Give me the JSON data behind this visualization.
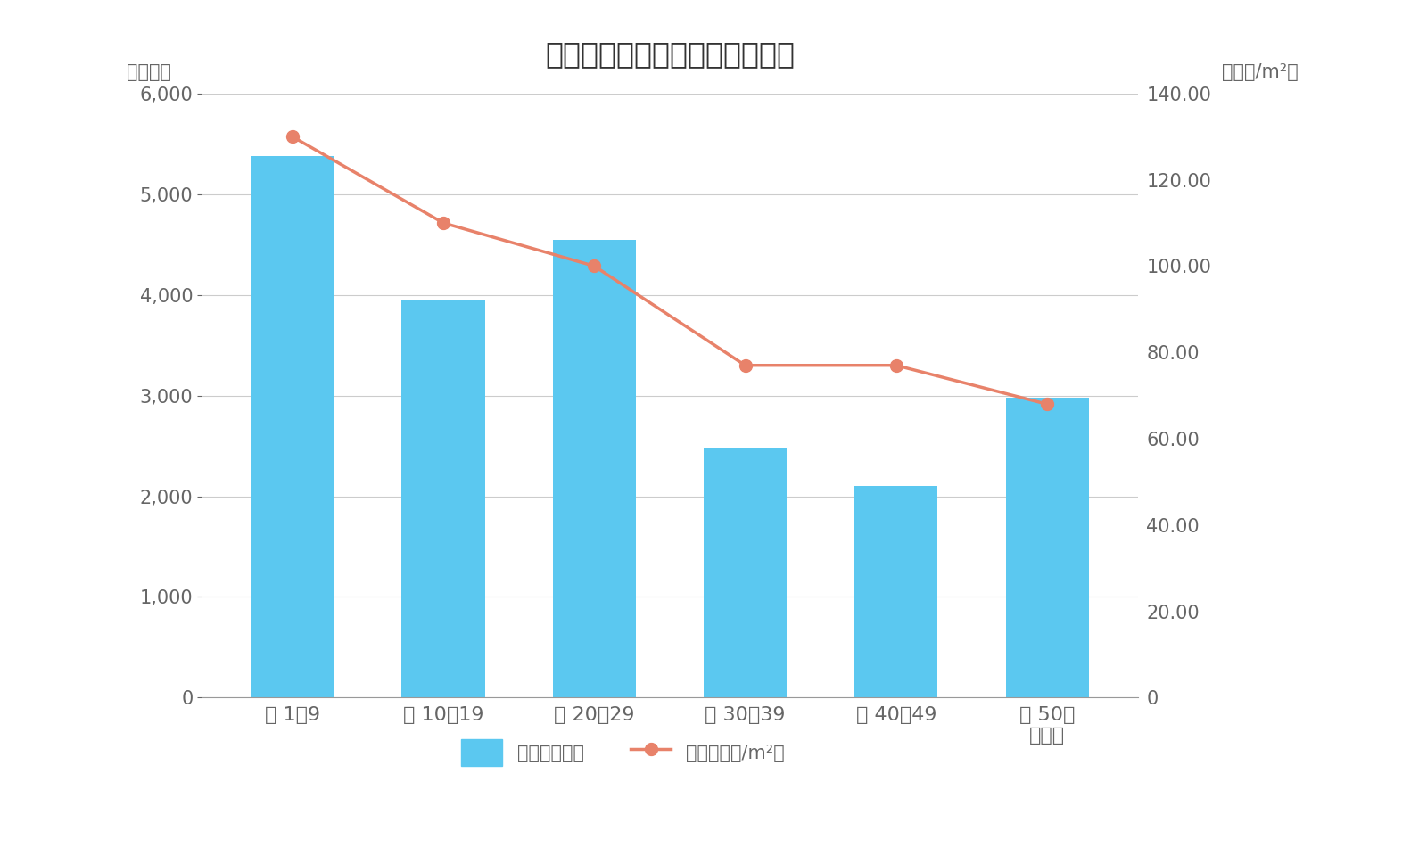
{
  "title": "中野区築年数別マンション価格",
  "categories": [
    "築 1〜9",
    "築 10〜19",
    "築 20〜29",
    "築 30〜39",
    "築 40〜49",
    "築 50〜\n（年）"
  ],
  "bar_values": [
    5380,
    3950,
    4550,
    2480,
    2100,
    2980
  ],
  "line_values": [
    130,
    110,
    100,
    77,
    77,
    68
  ],
  "bar_color": "#5BC8F0",
  "line_color": "#E8826A",
  "left_ylabel": "（万円）",
  "right_ylabel": "（万円/m²）",
  "ylim_left": [
    0,
    6000
  ],
  "ylim_right": [
    0,
    140
  ],
  "yticks_left": [
    0,
    1000,
    2000,
    3000,
    4000,
    5000,
    6000
  ],
  "yticks_right": [
    0,
    20,
    40,
    60,
    80,
    100,
    120,
    140
  ],
  "legend_bar_label": "価格（万円）",
  "legend_line_label": "単価（万円/m²）",
  "background_color": "#FFFFFF",
  "grid_color": "#CCCCCC",
  "text_color": "#666666",
  "title_fontsize": 24,
  "label_fontsize": 15,
  "tick_fontsize": 15,
  "legend_fontsize": 15
}
